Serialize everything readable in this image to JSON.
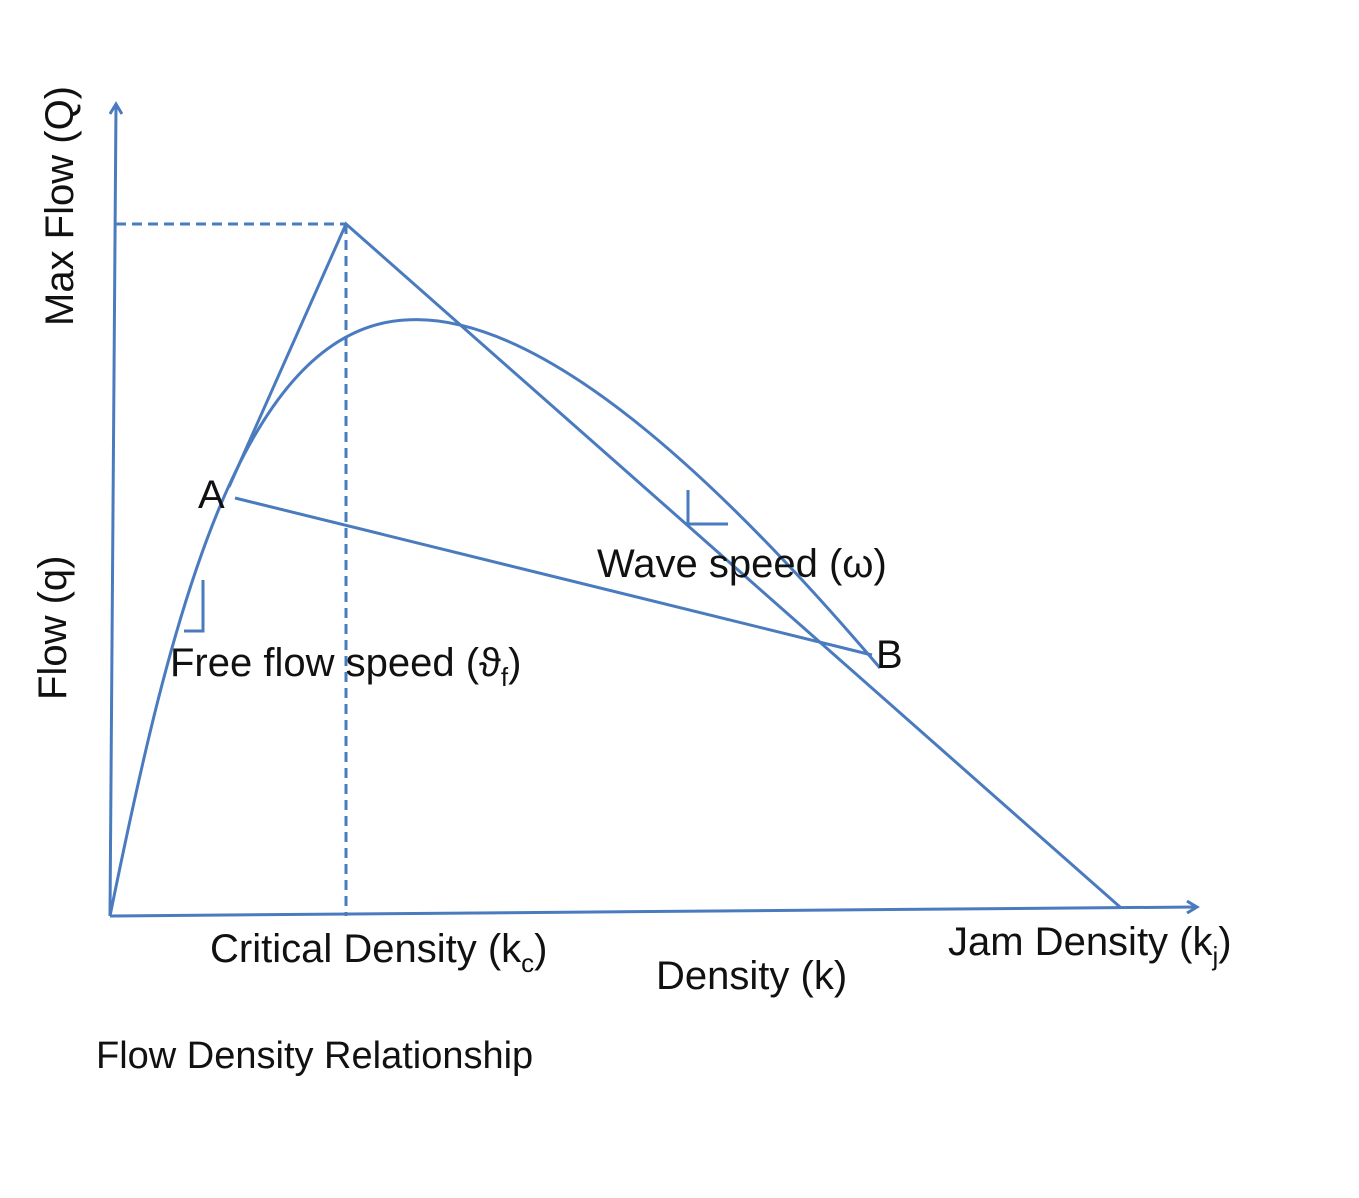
{
  "labels": {
    "y_top": "Max Flow (Q)",
    "y_mid": "Flow (q)",
    "x_critical_main": "Critical Density (k",
    "x_critical_sub": "c",
    "x_critical_close": ")",
    "x_density": "Density (k)",
    "x_jam_main": "Jam Density (k",
    "x_jam_sub": "j",
    "x_jam_close": ")",
    "point_a": "A",
    "point_b": "B",
    "wave_speed": "Wave speed (ω)",
    "free_flow_main": "Free flow speed (ϑ",
    "free_flow_sub": "f",
    "free_flow_close": ")",
    "caption": "Flow Density Relationship"
  },
  "colors": {
    "line": "#4a7bbf",
    "text": "#111111"
  }
}
